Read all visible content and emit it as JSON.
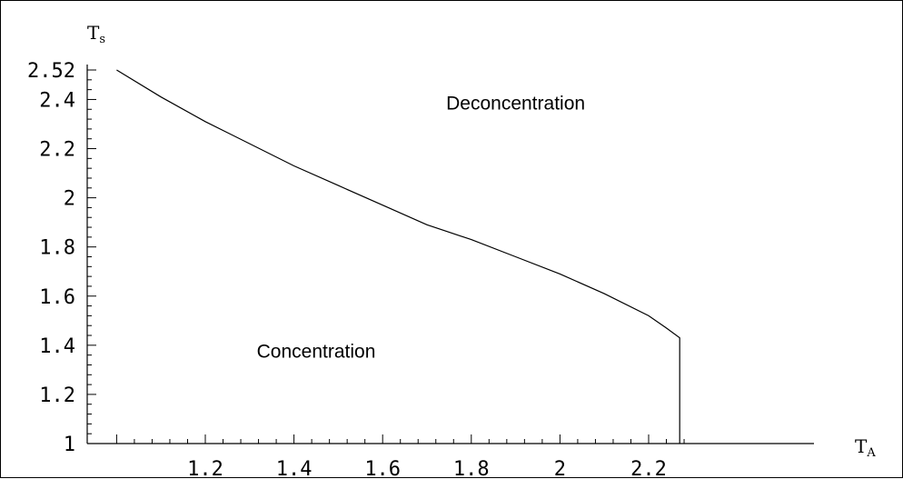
{
  "chart_data": {
    "type": "line",
    "xlabel": {
      "main": "T",
      "sub": "A"
    },
    "ylabel": {
      "main": "T",
      "sub": "s"
    },
    "xlim": [
      1.0,
      2.3
    ],
    "ylim": [
      1.0,
      2.52
    ],
    "x_ticks": [
      1.2,
      1.4,
      1.6,
      1.8,
      2,
      2.2
    ],
    "x_tick_labels": [
      "1.2",
      "1.4",
      "1.6",
      "1.8",
      "2",
      "2.2"
    ],
    "y_ticks": [
      1,
      1.2,
      1.4,
      1.6,
      1.8,
      2,
      2.2,
      2.4,
      2.52
    ],
    "y_tick_labels": [
      "1",
      "1.2",
      "1.4",
      "1.6",
      "1.8",
      "2",
      "2.2",
      "2.4",
      "2.52"
    ],
    "grid": false,
    "series": [
      {
        "x": [
          1.0,
          1.1,
          1.2,
          1.3,
          1.4,
          1.5,
          1.6,
          1.7,
          1.8,
          1.9,
          2.0,
          2.1,
          2.2,
          2.24,
          2.27,
          2.27
        ],
        "y": [
          2.52,
          2.41,
          2.31,
          2.22,
          2.13,
          2.05,
          1.97,
          1.89,
          1.83,
          1.76,
          1.69,
          1.61,
          1.52,
          1.47,
          1.43,
          1.0
        ]
      }
    ],
    "annotations": [
      {
        "text": "Deconcentration",
        "x": 1.9,
        "y": 2.36
      },
      {
        "text": "Concentration",
        "x": 1.45,
        "y": 1.35
      }
    ],
    "line_color": "#000000"
  }
}
